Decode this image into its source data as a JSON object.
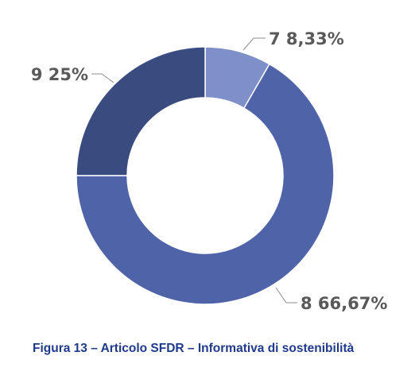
{
  "chart_data": {
    "type": "pie",
    "donut": true,
    "slices": [
      {
        "category": "7",
        "value": 8.33,
        "label": "7 8,33%",
        "color": "#7f90c8"
      },
      {
        "category": "8",
        "value": 66.67,
        "label": "8 66,67%",
        "color": "#4f63a8"
      },
      {
        "category": "9",
        "value": 25,
        "label": "9 25%",
        "color": "#3a4b7f"
      }
    ],
    "title": "",
    "legend": "none"
  },
  "caption": "Figura 13 – Articolo SFDR – Informativa di sostenibilità"
}
